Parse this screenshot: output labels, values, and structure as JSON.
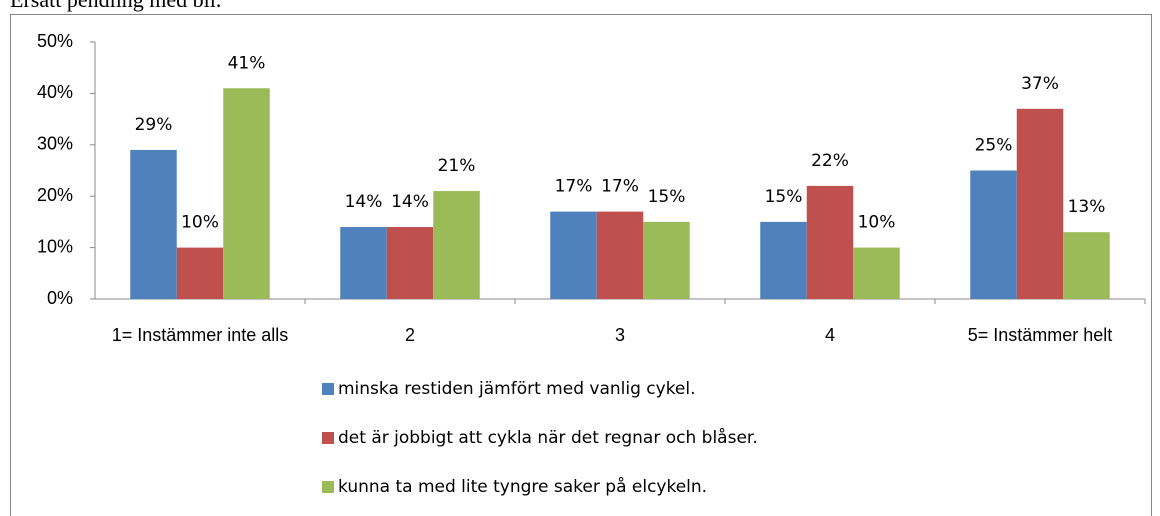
{
  "page_caption": "Ersätt pendling med bil.",
  "chart_data": {
    "type": "bar",
    "categories": [
      "1= Instämmer inte alls",
      "2",
      "3",
      "4",
      "5= Instämmer helt"
    ],
    "series": [
      {
        "name": "minska restiden jämfört med vanlig cykel.",
        "color": "#4f81bd",
        "values": [
          29,
          14,
          17,
          15,
          25
        ],
        "value_labels": [
          "29%",
          "14%",
          "17%",
          "15%",
          "25%"
        ]
      },
      {
        "name": "det är jobbigt att cykla när det regnar och blåser.",
        "color": "#c0504d",
        "values": [
          10,
          14,
          17,
          22,
          37
        ],
        "value_labels": [
          "10%",
          "14%",
          "17%",
          "22%",
          "37%"
        ]
      },
      {
        "name": "kunna ta med lite tyngre saker på elcykeln.",
        "color": "#9bbb59",
        "values": [
          41,
          21,
          15,
          10,
          13
        ],
        "value_labels": [
          "41%",
          "21%",
          "15%",
          "10%",
          "13%"
        ]
      }
    ],
    "ylim": [
      0,
      50
    ],
    "yticks": [
      {
        "value": 0,
        "label": "0%"
      },
      {
        "value": 10,
        "label": "10%"
      },
      {
        "value": 20,
        "label": "20%"
      },
      {
        "value": 30,
        "label": "30%"
      },
      {
        "value": 40,
        "label": "40%"
      },
      {
        "value": 50,
        "label": "50%"
      }
    ],
    "legend": "bottom"
  }
}
